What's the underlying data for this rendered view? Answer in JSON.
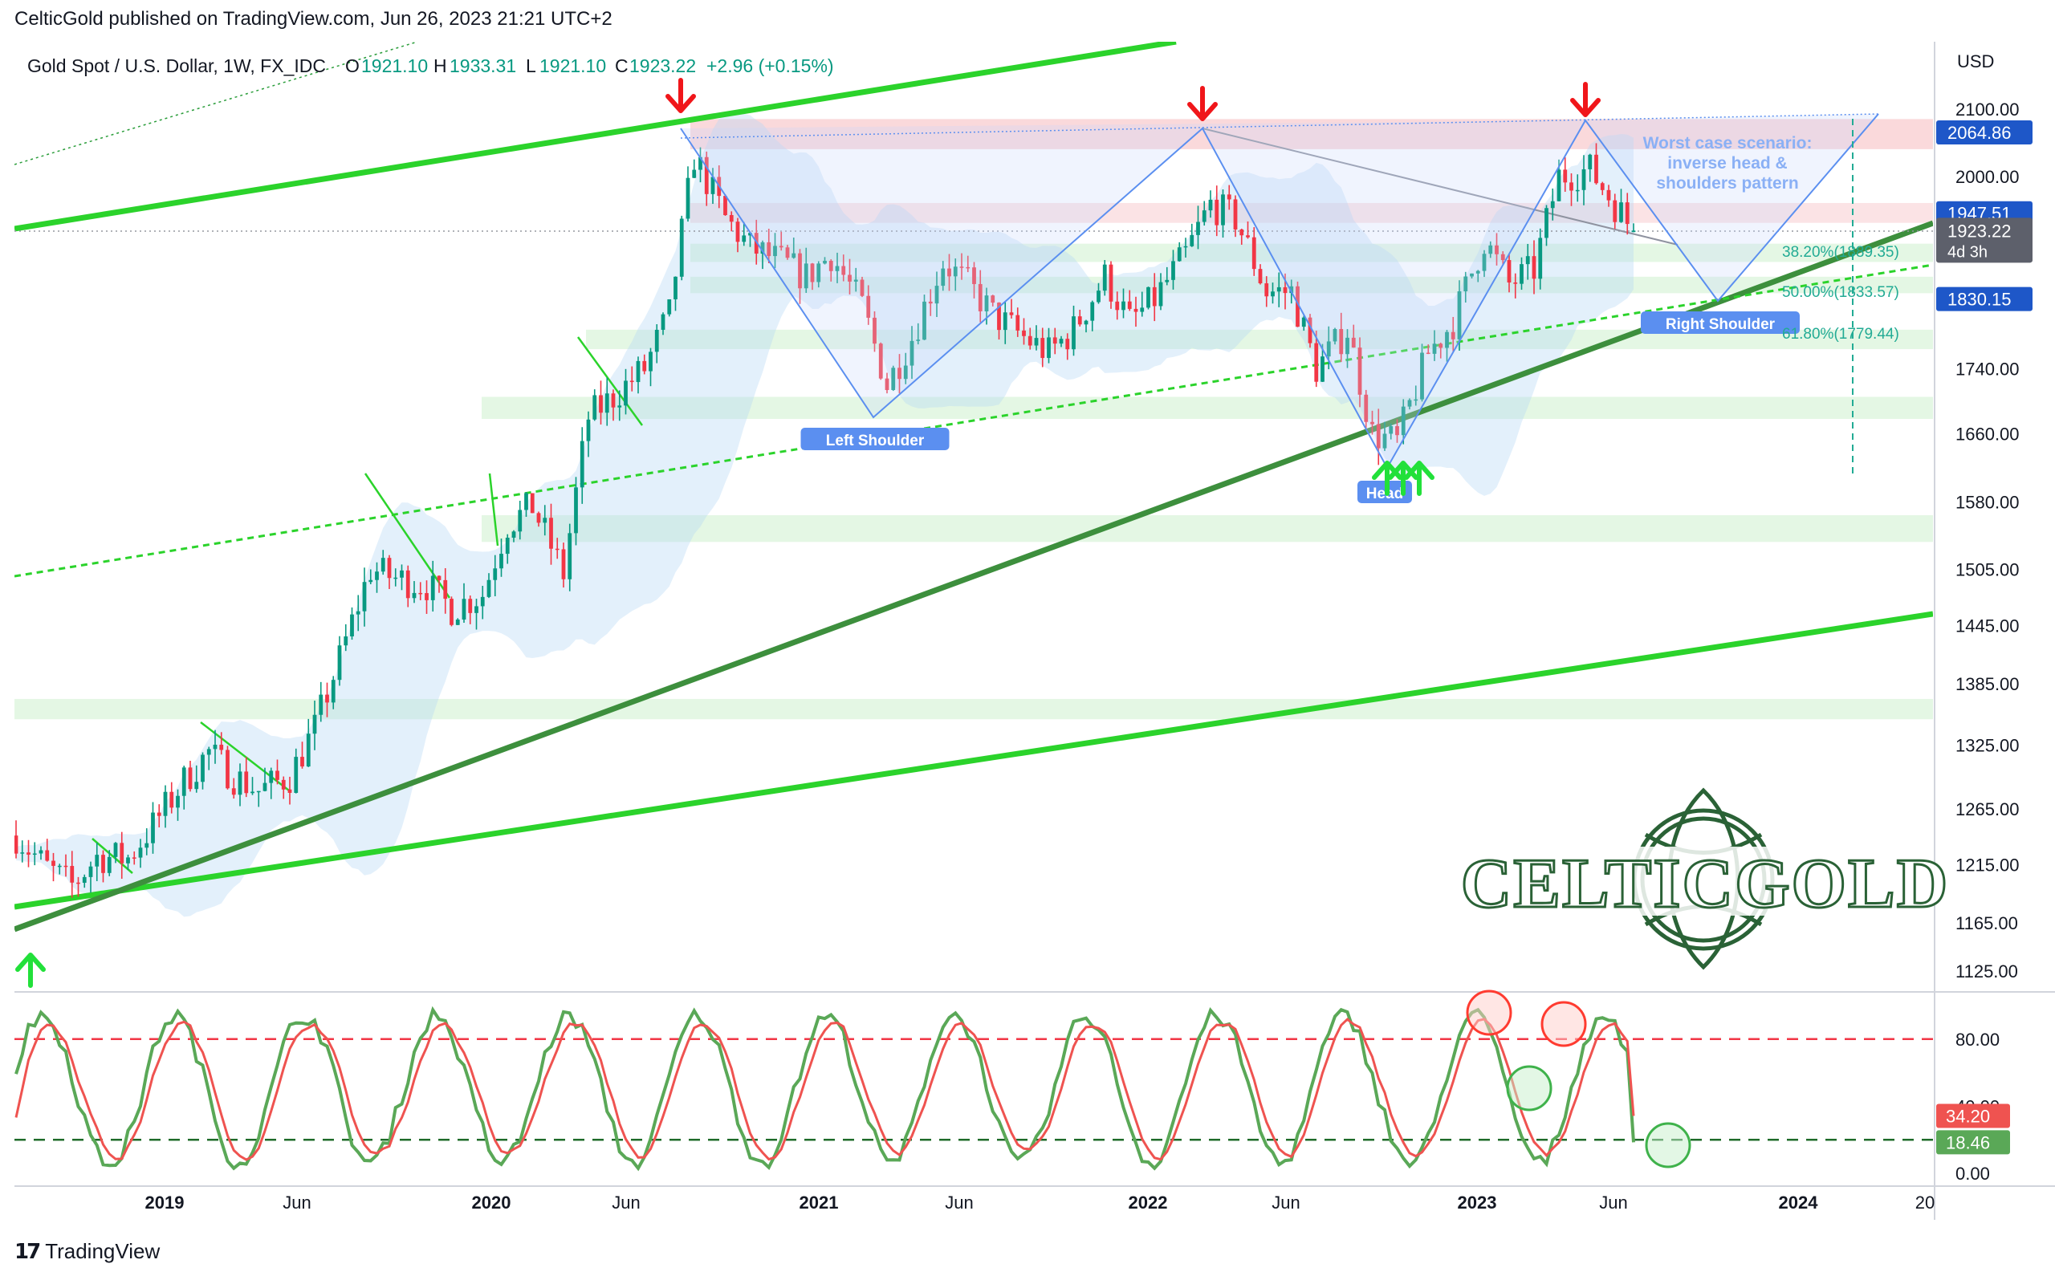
{
  "header": {
    "publisher": "CelticGold published on TradingView.com, Jun 26, 2023 21:21 UTC+2"
  },
  "legend": {
    "symbol": "Gold Spot / U.S. Dollar, 1W, FX_IDC",
    "open_label": "O",
    "open": "1921.10",
    "high_label": "H",
    "high": "1933.31",
    "low_label": "L",
    "low": "1921.10",
    "close_label": "C",
    "close": "1923.22",
    "change": "+2.96 (+0.15%)"
  },
  "footer": {
    "brand": "TradingView"
  },
  "watermark": {
    "text": "CELTICGOLD"
  },
  "colors": {
    "up": "#089981",
    "down": "#f23645",
    "channel": "#2bd32b",
    "trend": "#3d8f3d",
    "pattern": "#5b8ff0",
    "stoch_k": "#5aa857",
    "stoch_d": "#ef5350",
    "price_tag": "#1e57c8",
    "last_tag": "#131722",
    "celtic": "#1f5a2c"
  },
  "chart_data": [
    {
      "type": "candlestick",
      "title": "",
      "ylabel": "USD",
      "x_ticks": [
        "2019",
        "Jun",
        "2020",
        "Jun",
        "2021",
        "Jun",
        "2022",
        "Jun",
        "2023",
        "Jun",
        "2024",
        "20"
      ],
      "y_ticks": [
        "2100.00",
        "2000.00",
        "1740.00",
        "1660.00",
        "1580.00",
        "1505.00",
        "1445.00",
        "1385.00",
        "1325.00",
        "1265.00",
        "1215.00",
        "1165.00",
        "1125.00"
      ],
      "ylim": [
        1105,
        2150
      ],
      "y_scale": "log",
      "price_tags": [
        {
          "value": 2064.86,
          "label": "2064.86"
        },
        {
          "value": 1947.51,
          "label": "1947.51"
        },
        {
          "value": 1830.15,
          "label": "1830.15"
        }
      ],
      "last_price": {
        "value": 1923.22,
        "label": "1923.22",
        "countdown": "4d 3h"
      },
      "fib_levels": [
        {
          "label": "38.20%(1889.35)",
          "value": 1889.35
        },
        {
          "label": "50.00%(1833.57)",
          "value": 1833.57
        },
        {
          "label": "61.80%(1779.44)",
          "value": 1779.44
        }
      ],
      "annotations": [
        {
          "text": "Left Shoulder",
          "date": "2021-03-08",
          "value": 1680
        },
        {
          "text": "Head",
          "date": "2022-09-26",
          "value": 1618
        },
        {
          "text": "Right Shoulder",
          "date": "2023-10-02",
          "value": 1810
        },
        {
          "text": "Worst case scenario:",
          "date": "2023-09-04",
          "value": 2040
        },
        {
          "text": "inverse head &",
          "date": "2023-09-04",
          "value": 2010
        },
        {
          "text": "shoulders pattern",
          "date": "2023-09-04",
          "value": 1980
        }
      ],
      "weekly_close": [
        [
          "2018-07-02",
          1241
        ],
        [
          "2018-08-06",
          1212
        ],
        [
          "2018-09-03",
          1197
        ],
        [
          "2018-10-01",
          1222
        ],
        [
          "2018-11-05",
          1221
        ],
        [
          "2018-12-03",
          1250
        ],
        [
          "2019-01-07",
          1291
        ],
        [
          "2019-02-04",
          1318
        ],
        [
          "2019-03-04",
          1295
        ],
        [
          "2019-04-01",
          1282
        ],
        [
          "2019-05-06",
          1295
        ],
        [
          "2019-06-03",
          1341
        ],
        [
          "2019-07-01",
          1410
        ],
        [
          "2019-08-05",
          1505
        ],
        [
          "2019-09-02",
          1495
        ],
        [
          "2019-10-07",
          1488
        ],
        [
          "2019-11-04",
          1463
        ],
        [
          "2019-12-09",
          1478
        ],
        [
          "2020-01-06",
          1555
        ],
        [
          "2020-02-03",
          1575
        ],
        [
          "2020-03-09",
          1500
        ],
        [
          "2020-04-06",
          1680
        ],
        [
          "2020-05-04",
          1705
        ],
        [
          "2020-06-08",
          1740
        ],
        [
          "2020-07-06",
          1810
        ],
        [
          "2020-08-03",
          2030
        ],
        [
          "2020-09-07",
          1940
        ],
        [
          "2020-10-05",
          1900
        ],
        [
          "2020-11-09",
          1880
        ],
        [
          "2020-12-07",
          1860
        ],
        [
          "2021-01-04",
          1890
        ],
        [
          "2021-02-08",
          1820
        ],
        [
          "2021-03-08",
          1720
        ],
        [
          "2021-04-05",
          1780
        ],
        [
          "2021-05-10",
          1880
        ],
        [
          "2021-06-07",
          1850
        ],
        [
          "2021-07-05",
          1810
        ],
        [
          "2021-08-09",
          1780
        ],
        [
          "2021-09-06",
          1760
        ],
        [
          "2021-10-04",
          1790
        ],
        [
          "2021-11-08",
          1860
        ],
        [
          "2021-12-06",
          1800
        ],
        [
          "2022-01-03",
          1830
        ],
        [
          "2022-02-07",
          1890
        ],
        [
          "2022-03-07",
          1960
        ],
        [
          "2022-04-04",
          1940
        ],
        [
          "2022-05-09",
          1840
        ],
        [
          "2022-06-06",
          1840
        ],
        [
          "2022-07-04",
          1740
        ],
        [
          "2022-08-08",
          1790
        ],
        [
          "2022-09-05",
          1660
        ],
        [
          "2022-10-03",
          1650
        ],
        [
          "2022-11-07",
          1760
        ],
        [
          "2022-12-05",
          1800
        ],
        [
          "2023-01-09",
          1910
        ],
        [
          "2023-02-06",
          1850
        ],
        [
          "2023-03-06",
          1870
        ],
        [
          "2023-04-03",
          2000
        ],
        [
          "2023-05-08",
          2010
        ],
        [
          "2023-06-05",
          1960
        ],
        [
          "2023-06-26",
          1923
        ]
      ]
    },
    {
      "type": "line",
      "title": "",
      "y_ticks": [
        "80.00",
        "40.00",
        "0.00"
      ],
      "ylim": [
        -5,
        105
      ],
      "reference_lines": [
        80,
        20
      ],
      "series": [
        {
          "name": "",
          "last": "18.46"
        },
        {
          "name": "",
          "last": "34.20"
        }
      ]
    }
  ]
}
